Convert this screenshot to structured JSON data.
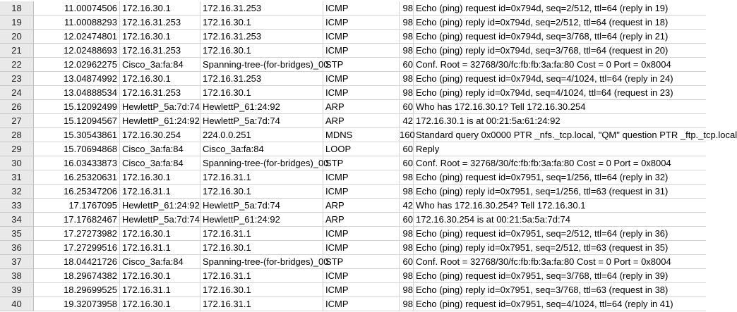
{
  "rows": [
    {
      "n": "18",
      "time": "11.00074506",
      "src": "172.16.30.1",
      "dst": "172.16.31.253",
      "proto": "ICMP",
      "len": "98",
      "info": "Echo (ping) request  id=0x794d, seq=2/512, ttl=64 (reply in 19)"
    },
    {
      "n": "19",
      "time": "11.00088293",
      "src": "172.16.31.253",
      "dst": "172.16.30.1",
      "proto": "ICMP",
      "len": "98",
      "info": "Echo (ping) reply    id=0x794d, seq=2/512, ttl=64 (request in 18)"
    },
    {
      "n": "20",
      "time": "12.02474801",
      "src": "172.16.30.1",
      "dst": "172.16.31.253",
      "proto": "ICMP",
      "len": "98",
      "info": "Echo (ping) request  id=0x794d, seq=3/768, ttl=64 (reply in 21)"
    },
    {
      "n": "21",
      "time": "12.02488693",
      "src": "172.16.31.253",
      "dst": "172.16.30.1",
      "proto": "ICMP",
      "len": "98",
      "info": "Echo (ping) reply    id=0x794d, seq=3/768, ttl=64 (request in 20)"
    },
    {
      "n": "22",
      "time": "12.02962275",
      "src": "Cisco_3a:fa:84",
      "dst": "Spanning-tree-(for-bridges)_00",
      "proto": "STP",
      "len": "60",
      "info": "Conf. Root = 32768/30/fc:fb:fb:3a:fa:80  Cost = 0  Port = 0x8004"
    },
    {
      "n": "23",
      "time": "13.04874992",
      "src": "172.16.30.1",
      "dst": "172.16.31.253",
      "proto": "ICMP",
      "len": "98",
      "info": "Echo (ping) request  id=0x794d, seq=4/1024, ttl=64 (reply in 24)"
    },
    {
      "n": "24",
      "time": "13.04888534",
      "src": "172.16.31.253",
      "dst": "172.16.30.1",
      "proto": "ICMP",
      "len": "98",
      "info": "Echo (ping) reply    id=0x794d, seq=4/1024, ttl=64 (request in 23)"
    },
    {
      "n": "26",
      "time": "15.12092499",
      "src": "HewlettP_5a:7d:74",
      "dst": "HewlettP_61:24:92",
      "proto": "ARP",
      "len": "60",
      "info": "Who has 172.16.30.1? Tell 172.16.30.254"
    },
    {
      "n": "27",
      "time": "15.12094567",
      "src": "HewlettP_61:24:92",
      "dst": "HewlettP_5a:7d:74",
      "proto": "ARP",
      "len": "42",
      "info": "172.16.30.1 is at 00:21:5a:61:24:92"
    },
    {
      "n": "28",
      "time": "15.30543861",
      "src": "172.16.30.254",
      "dst": "224.0.0.251",
      "proto": "MDNS",
      "len": "160",
      "info": "Standard query 0x0000 PTR _nfs._tcp.local, \"QM\" question PTR _ftp._tcp.local"
    },
    {
      "n": "29",
      "time": "15.70694868",
      "src": "Cisco_3a:fa:84",
      "dst": "Cisco_3a:fa:84",
      "proto": "LOOP",
      "len": "60",
      "info": "Reply"
    },
    {
      "n": "30",
      "time": "16.03433873",
      "src": "Cisco_3a:fa:84",
      "dst": "Spanning-tree-(for-bridges)_00",
      "proto": "STP",
      "len": "60",
      "info": "Conf. Root = 32768/30/fc:fb:fb:3a:fa:80  Cost = 0  Port = 0x8004"
    },
    {
      "n": "31",
      "time": "16.25320631",
      "src": "172.16.30.1",
      "dst": "172.16.31.1",
      "proto": "ICMP",
      "len": "98",
      "info": "Echo (ping) request  id=0x7951, seq=1/256, ttl=64 (reply in 32)"
    },
    {
      "n": "32",
      "time": "16.25347206",
      "src": "172.16.31.1",
      "dst": "172.16.30.1",
      "proto": "ICMP",
      "len": "98",
      "info": "Echo (ping) reply    id=0x7951, seq=1/256, ttl=63 (request in 31)"
    },
    {
      "n": "33",
      "time": "17.1767095",
      "src": "HewlettP_61:24:92",
      "dst": "HewlettP_5a:7d:74",
      "proto": "ARP",
      "len": "42",
      "info": "Who has 172.16.30.254? Tell 172.16.30.1"
    },
    {
      "n": "34",
      "time": "17.17682467",
      "src": "HewlettP_5a:7d:74",
      "dst": "HewlettP_61:24:92",
      "proto": "ARP",
      "len": "60",
      "info": "172.16.30.254 is at 00:21:5a:5a:7d:74"
    },
    {
      "n": "35",
      "time": "17.27273982",
      "src": "172.16.30.1",
      "dst": "172.16.31.1",
      "proto": "ICMP",
      "len": "98",
      "info": "Echo (ping) request  id=0x7951, seq=2/512, ttl=64 (reply in 36)"
    },
    {
      "n": "36",
      "time": "17.27299516",
      "src": "172.16.31.1",
      "dst": "172.16.30.1",
      "proto": "ICMP",
      "len": "98",
      "info": "Echo (ping) reply    id=0x7951, seq=2/512, ttl=63 (request in 35)"
    },
    {
      "n": "37",
      "time": "18.04421726",
      "src": "Cisco_3a:fa:84",
      "dst": "Spanning-tree-(for-bridges)_00",
      "proto": "STP",
      "len": "60",
      "info": "Conf. Root = 32768/30/fc:fb:fb:3a:fa:80  Cost = 0  Port = 0x8004"
    },
    {
      "n": "38",
      "time": "18.29674382",
      "src": "172.16.30.1",
      "dst": "172.16.31.1",
      "proto": "ICMP",
      "len": "98",
      "info": "Echo (ping) request  id=0x7951, seq=3/768, ttl=64 (reply in 39)"
    },
    {
      "n": "39",
      "time": "18.29699525",
      "src": "172.16.31.1",
      "dst": "172.16.30.1",
      "proto": "ICMP",
      "len": "98",
      "info": "Echo (ping) reply    id=0x7951, seq=3/768, ttl=63 (request in 38)"
    },
    {
      "n": "40",
      "time": "19.32073958",
      "src": "172.16.30.1",
      "dst": "172.16.31.1",
      "proto": "ICMP",
      "len": "98",
      "info": "Echo (ping) request  id=0x7951, seq=4/1024, ttl=64 (reply in 41)"
    }
  ]
}
